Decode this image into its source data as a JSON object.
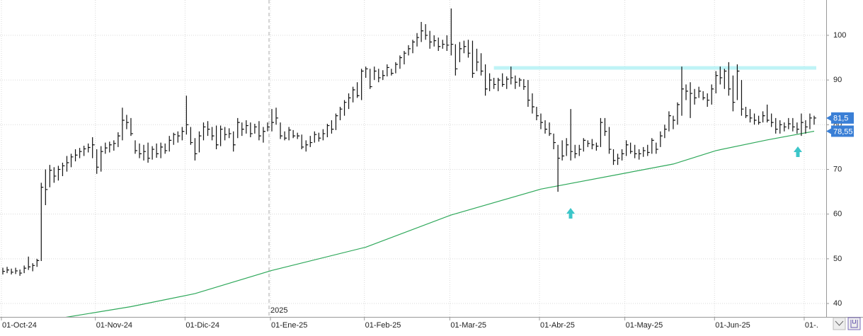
{
  "chart_data": {
    "type": "hlc",
    "categories": [
      "01-Oct-24",
      null,
      null,
      null,
      null,
      null,
      null,
      null,
      null,
      null,
      null,
      null,
      null,
      null,
      null,
      null,
      null,
      null,
      null,
      null,
      null,
      null,
      "01-Nov-24",
      null,
      null,
      null,
      null,
      null,
      null,
      null,
      null,
      null,
      null,
      null,
      null,
      null,
      null,
      null,
      null,
      null,
      null,
      null,
      null,
      "01-Dic-24",
      null,
      null,
      null,
      null,
      null,
      null,
      null,
      null,
      null,
      null,
      null,
      null,
      null,
      null,
      null,
      null,
      null,
      null,
      null,
      "01-Ene-25",
      null,
      null,
      null,
      null,
      null,
      null,
      null,
      null,
      null,
      null,
      null,
      null,
      null,
      null,
      null,
      null,
      null,
      null,
      null,
      null,
      null,
      "01-Feb-25",
      null,
      null,
      null,
      null,
      null,
      null,
      null,
      null,
      null,
      null,
      null,
      null,
      null,
      null,
      null,
      null,
      null,
      null,
      null,
      "01-Mar-25",
      null,
      null,
      null,
      null,
      null,
      null,
      null,
      null,
      null,
      null,
      null,
      null,
      null,
      null,
      null,
      null,
      null,
      null,
      null,
      null,
      "01-Abr-25",
      null,
      null,
      null,
      null,
      null,
      null,
      null,
      null,
      null,
      null,
      null,
      null,
      null,
      null,
      null,
      null,
      null,
      null,
      null,
      "01-May-25",
      null,
      null,
      null,
      null,
      null,
      null,
      null,
      null,
      null,
      null,
      null,
      null,
      null,
      null,
      null,
      null,
      null,
      null,
      null,
      null,
      "01-Jun-25",
      null,
      null,
      null,
      null,
      null,
      null,
      null,
      null,
      null,
      null,
      null,
      null,
      null,
      null,
      null,
      null,
      null,
      null,
      null,
      null,
      "01-.",
      null,
      null
    ],
    "hlc": [
      [
        48,
        46.5,
        47.2
      ],
      [
        48.2,
        46.8,
        47.5
      ],
      [
        47.8,
        46.5,
        47
      ],
      [
        48,
        46.6,
        47.3
      ],
      [
        47.6,
        46.2,
        46.8
      ],
      [
        48.5,
        46.8,
        47.9
      ],
      [
        50.5,
        47.5,
        48.2
      ],
      [
        49,
        47.2,
        48.5
      ],
      [
        50,
        48.2,
        49.6
      ],
      [
        67,
        49.5,
        66
      ],
      [
        70,
        62,
        65.5
      ],
      [
        71,
        66,
        69.8
      ],
      [
        70.5,
        67,
        68.5
      ],
      [
        70.8,
        67.5,
        70
      ],
      [
        71.5,
        68.5,
        70.8
      ],
      [
        73,
        69.5,
        71.5
      ],
      [
        73.5,
        70.5,
        72.8
      ],
      [
        74.5,
        71.8,
        73.2
      ],
      [
        74.8,
        72.5,
        74
      ],
      [
        75.3,
        73,
        74.6
      ],
      [
        75.8,
        73.8,
        74.9
      ],
      [
        77.2,
        72.5,
        75.5
      ],
      [
        74.5,
        69,
        70.5
      ],
      [
        75.2,
        69.5,
        74
      ],
      [
        76,
        73.5,
        74.8
      ],
      [
        76.2,
        73.8,
        75.5
      ],
      [
        76.5,
        74.2,
        75.8
      ],
      [
        78.3,
        75,
        77.5
      ],
      [
        83.8,
        76.5,
        81
      ],
      [
        82.2,
        79,
        80.5
      ],
      [
        81.5,
        77.5,
        78
      ],
      [
        76.5,
        73.5,
        74.2
      ],
      [
        75.8,
        72.5,
        73.5
      ],
      [
        75.5,
        72,
        74
      ],
      [
        76,
        71.5,
        72.5
      ],
      [
        75.2,
        72.2,
        74.5
      ],
      [
        75.8,
        72.6,
        73.5
      ],
      [
        76,
        72.5,
        75
      ],
      [
        75.8,
        73.5,
        74.2
      ],
      [
        77.5,
        74,
        76.5
      ],
      [
        78.2,
        75.5,
        77.8
      ],
      [
        78.5,
        76,
        77.5
      ],
      [
        79.5,
        76.5,
        78.5
      ],
      [
        86.5,
        77.8,
        80
      ],
      [
        79.5,
        75.5,
        76
      ],
      [
        77,
        72,
        73.5
      ],
      [
        78.5,
        73.8,
        77.5
      ],
      [
        80.5,
        76.5,
        79.5
      ],
      [
        80.8,
        77.5,
        79
      ],
      [
        79.5,
        76.5,
        77.5
      ],
      [
        79.8,
        74.5,
        75.5
      ],
      [
        79.8,
        75.2,
        79
      ],
      [
        79.5,
        76.5,
        77.8
      ],
      [
        79.2,
        77,
        78
      ],
      [
        78.5,
        74,
        75.5
      ],
      [
        81.5,
        77,
        80.5
      ],
      [
        80.5,
        77.5,
        79
      ],
      [
        81,
        78,
        79.8
      ],
      [
        80.5,
        77.2,
        78
      ],
      [
        80.2,
        78,
        79.5
      ],
      [
        80.8,
        76.5,
        77.5
      ],
      [
        79.5,
        76,
        78.5
      ],
      [
        80.5,
        78.5,
        79.5
      ],
      [
        83.5,
        78.5,
        80.5
      ],
      [
        83.8,
        80,
        81.5
      ],
      [
        80.5,
        76.8,
        77.5
      ],
      [
        78.5,
        76.5,
        77
      ],
      [
        79.5,
        76.5,
        78.8
      ],
      [
        78.8,
        77,
        77.5
      ],
      [
        78.2,
        76.8,
        77.5
      ],
      [
        77.8,
        74.5,
        75
      ],
      [
        76.5,
        74,
        75.5
      ],
      [
        77.5,
        75,
        76
      ],
      [
        78.5,
        76,
        77.8
      ],
      [
        78.2,
        76.2,
        77
      ],
      [
        79,
        76.5,
        78
      ],
      [
        80.2,
        77.2,
        79.8
      ],
      [
        81,
        78,
        79
      ],
      [
        82.5,
        78.8,
        82
      ],
      [
        84,
        81,
        83.5
      ],
      [
        85.5,
        82,
        85
      ],
      [
        87,
        83.5,
        86
      ],
      [
        88.5,
        85,
        87.8
      ],
      [
        89.5,
        86,
        86.5
      ],
      [
        92.5,
        85.5,
        92
      ],
      [
        93,
        90.5,
        92.5
      ],
      [
        92.5,
        88,
        88.5
      ],
      [
        93,
        90,
        92
      ],
      [
        92.5,
        89.5,
        90.5
      ],
      [
        92.2,
        90,
        91
      ],
      [
        93.5,
        90.8,
        92.8
      ],
      [
        92.5,
        91,
        91.5
      ],
      [
        94,
        91.5,
        93.5
      ],
      [
        95.5,
        92.5,
        95
      ],
      [
        96.5,
        93.5,
        96
      ],
      [
        97.8,
        95.5,
        97
      ],
      [
        99,
        96,
        98.5
      ],
      [
        100.5,
        97.5,
        99.5
      ],
      [
        103,
        98.5,
        101
      ],
      [
        102.5,
        99,
        100
      ],
      [
        101,
        97,
        98.5
      ],
      [
        100,
        97.5,
        98.8
      ],
      [
        99.5,
        96.5,
        97.5
      ],
      [
        99,
        97,
        98
      ],
      [
        100,
        96.5,
        97.8
      ],
      [
        106,
        95.5,
        98
      ],
      [
        98,
        91,
        92.5
      ],
      [
        98.5,
        94,
        97
      ],
      [
        98.8,
        96,
        97.5
      ],
      [
        99,
        95,
        96
      ],
      [
        98.8,
        90.5,
        91.5
      ],
      [
        97,
        92,
        94
      ],
      [
        96,
        91,
        92
      ],
      [
        93.5,
        86.5,
        88
      ],
      [
        91.5,
        87.5,
        90
      ],
      [
        90.5,
        88,
        89
      ],
      [
        90.5,
        87.5,
        90
      ],
      [
        91.5,
        88.5,
        89
      ],
      [
        90.8,
        88,
        90.2
      ],
      [
        93,
        89,
        90.5
      ],
      [
        91,
        88,
        89.5
      ],
      [
        90.5,
        88.5,
        90
      ],
      [
        90.2,
        87.8,
        88.5
      ],
      [
        90,
        84,
        85.5
      ],
      [
        87,
        82.5,
        84
      ],
      [
        84,
        81,
        82
      ],
      [
        82.5,
        79,
        80.5
      ],
      [
        81,
        78,
        79
      ],
      [
        80.5,
        77.5,
        78
      ],
      [
        78,
        74.5,
        76
      ],
      [
        75.5,
        65,
        72.5
      ],
      [
        76.5,
        72,
        73
      ],
      [
        77,
        73,
        75.5
      ],
      [
        83.5,
        72,
        74
      ],
      [
        75.5,
        72.5,
        73.5
      ],
      [
        75.5,
        73,
        74.5
      ],
      [
        77,
        74,
        76.5
      ],
      [
        76.5,
        75,
        75.8
      ],
      [
        76.8,
        74.5,
        75.5
      ],
      [
        76,
        74.2,
        75.2
      ],
      [
        81.5,
        75,
        80.5
      ],
      [
        81.5,
        77.5,
        78.5
      ],
      [
        79.5,
        73.5,
        74.5
      ],
      [
        74.5,
        71,
        72
      ],
      [
        73.5,
        71,
        72.5
      ],
      [
        74.5,
        72,
        73.5
      ],
      [
        76.5,
        73,
        75.5
      ],
      [
        76,
        73.5,
        74
      ],
      [
        75.5,
        72.5,
        73.5
      ],
      [
        74.5,
        72.2,
        73.5
      ],
      [
        75,
        72.8,
        74.2
      ],
      [
        75.5,
        73,
        73.8
      ],
      [
        77,
        73.5,
        76.5
      ],
      [
        76,
        73.5,
        74.5
      ],
      [
        78.5,
        75,
        77.5
      ],
      [
        80,
        77,
        79
      ],
      [
        83,
        78.5,
        82
      ],
      [
        82,
        79,
        81
      ],
      [
        85,
        80,
        84.5
      ],
      [
        93,
        82,
        88
      ],
      [
        89,
        85.5,
        87.5
      ],
      [
        89.5,
        81.5,
        87
      ],
      [
        88,
        84.5,
        86
      ],
      [
        88.5,
        86,
        87.5
      ],
      [
        87.5,
        85.5,
        86
      ],
      [
        87,
        84,
        85.5
      ],
      [
        89,
        84.5,
        88
      ],
      [
        92,
        87,
        91
      ],
      [
        93,
        89,
        90.5
      ],
      [
        92.5,
        88,
        92
      ],
      [
        94,
        86.5,
        88
      ],
      [
        91,
        83,
        85
      ],
      [
        93.5,
        85.5,
        92
      ],
      [
        90,
        82,
        83.5
      ],
      [
        84,
        81.5,
        82
      ],
      [
        83.5,
        80.5,
        81.5
      ],
      [
        82.5,
        80,
        81
      ],
      [
        82,
        80,
        80.5
      ],
      [
        83,
        80.5,
        82
      ],
      [
        84.5,
        80.5,
        81
      ],
      [
        82.5,
        79.5,
        80.5
      ],
      [
        81.5,
        78,
        79
      ],
      [
        81,
        78,
        80
      ],
      [
        80.5,
        78.5,
        79.5
      ],
      [
        81.5,
        79,
        80.2
      ],
      [
        81.5,
        78.5,
        79.5
      ],
      [
        80.5,
        78,
        79
      ],
      [
        82.5,
        77.5,
        80.5
      ],
      [
        81,
        78,
        79.5
      ],
      [
        82.5,
        79,
        81.5
      ],
      [
        82,
        80,
        81.5
      ]
    ],
    "bar_color": "#111111",
    "ma": {
      "x": [
        14,
        30,
        45,
        63,
        85,
        105,
        126,
        146,
        157,
        167,
        179,
        190
      ],
      "values": [
        36.8,
        39.3,
        42.2,
        47.4,
        52.6,
        59.8,
        65.6,
        69.2,
        71.2,
        74.2,
        76.6,
        78.55
      ],
      "color": "#2ea85a"
    },
    "hline": {
      "value": 92.7,
      "color": "#bff3f6"
    },
    "last_close": {
      "value": 81.5,
      "label": "81,5"
    },
    "ma_last": {
      "value": 78.55,
      "label": "78,55"
    },
    "label_color": "#3a7fd6",
    "year_marker": "2025",
    "ylim": [
      37,
      107.9
    ],
    "yticks": [
      40,
      50,
      60,
      70,
      80,
      90,
      100
    ],
    "grid": true
  }
}
